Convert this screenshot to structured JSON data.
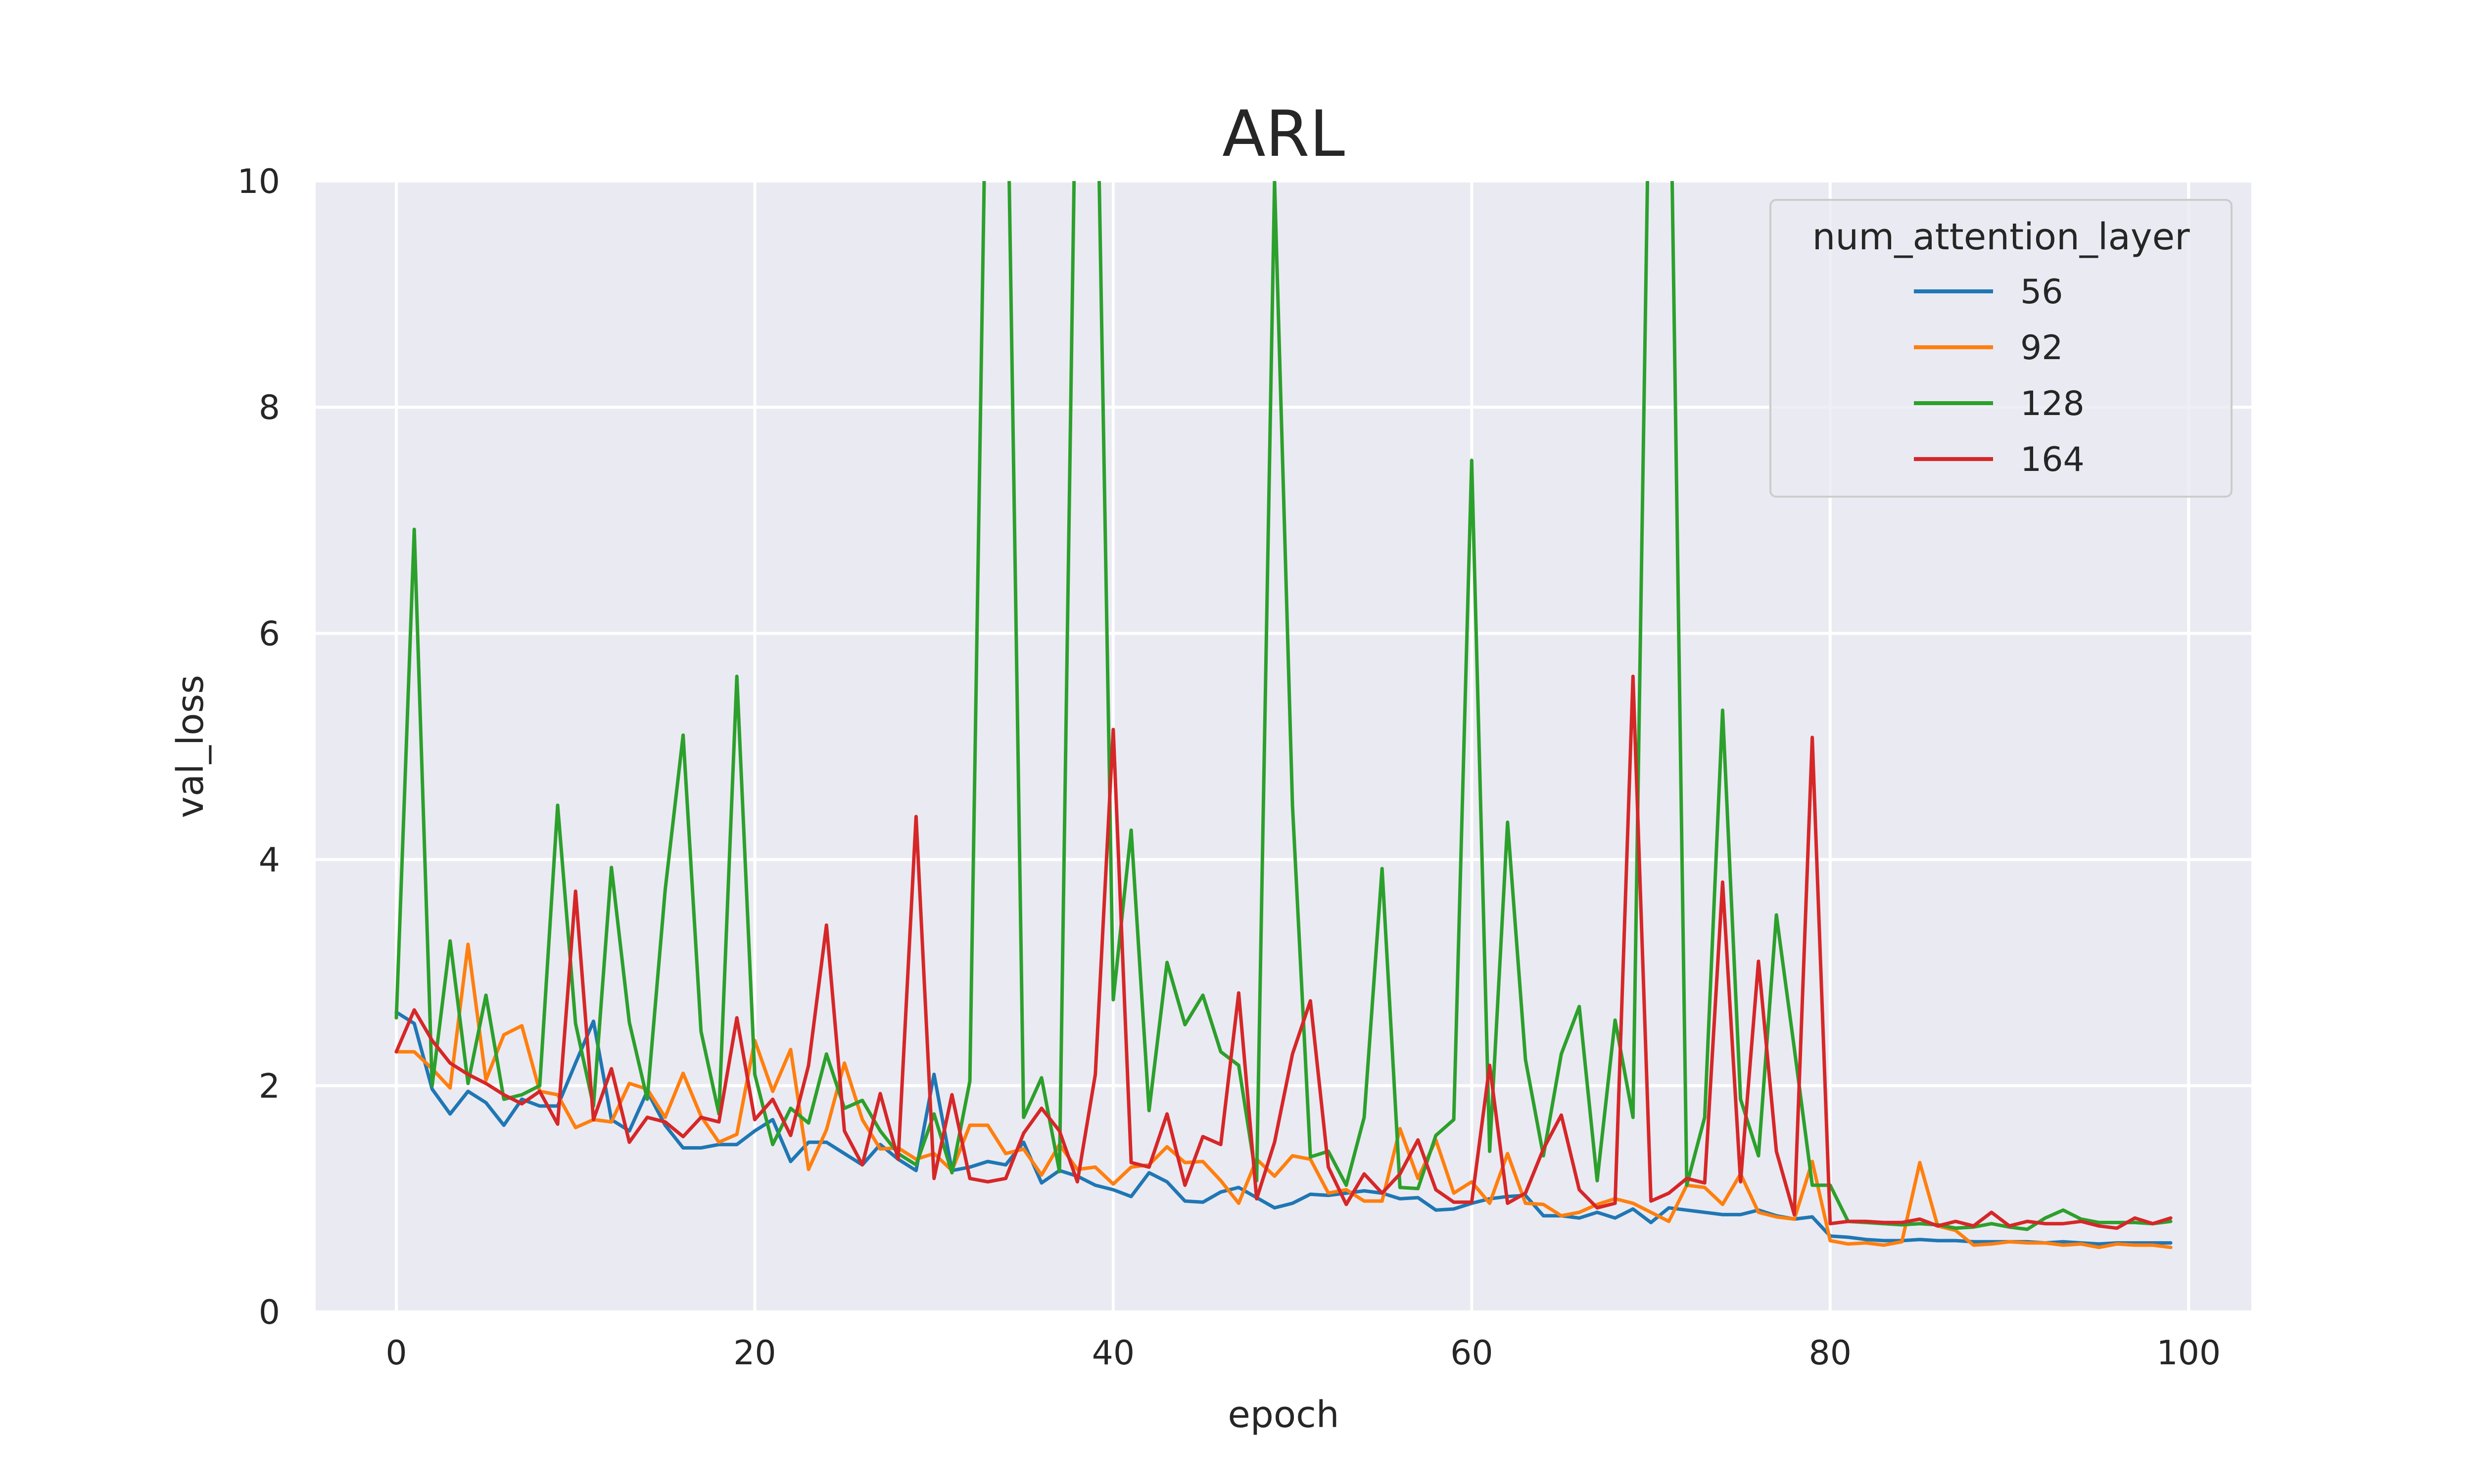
{
  "chart_data": {
    "type": "line",
    "title": "ARL",
    "xlabel": "epoch",
    "ylabel": "val_loss",
    "xlim": [
      -4.5,
      103.5
    ],
    "ylim": [
      0,
      10
    ],
    "xticks": [
      0,
      20,
      40,
      60,
      80,
      100
    ],
    "yticks": [
      0,
      2,
      4,
      6,
      8,
      10
    ],
    "grid": true,
    "legend": {
      "title": "num_attention_layer",
      "placement": "top-right"
    },
    "colors": {
      "56": "#1f77b4",
      "92": "#ff7f0e",
      "128": "#2ca02c",
      "164": "#d62728",
      "background": "#eaeaf2"
    },
    "series": [
      {
        "name": "56",
        "color": "#1f77b4",
        "values": [
          2.65,
          2.55,
          1.97,
          1.75,
          1.95,
          1.85,
          1.65,
          1.88,
          1.82,
          1.82,
          2.2,
          2.57,
          1.7,
          1.6,
          1.95,
          1.65,
          1.45,
          1.45,
          1.48,
          1.48,
          1.6,
          1.7,
          1.33,
          1.5,
          1.5,
          1.4,
          1.3,
          1.48,
          1.35,
          1.25,
          2.1,
          1.25,
          1.28,
          1.33,
          1.3,
          1.5,
          1.14,
          1.25,
          1.2,
          1.12,
          1.08,
          1.02,
          1.23,
          1.15,
          0.98,
          0.97,
          1.06,
          1.1,
          1.01,
          0.92,
          0.96,
          1.04,
          1.03,
          1.05,
          1.07,
          1.05,
          1.0,
          1.01,
          0.9,
          0.91,
          0.96,
          1.0,
          1.02,
          1.03,
          0.85,
          0.85,
          0.83,
          0.88,
          0.83,
          0.91,
          0.79,
          0.92,
          0.9,
          0.88,
          0.86,
          0.86,
          0.9,
          0.85,
          0.82,
          0.84,
          0.67,
          0.66,
          0.64,
          0.63,
          0.63,
          0.64,
          0.63,
          0.63,
          0.62,
          0.62,
          0.62,
          0.62,
          0.61,
          0.62,
          0.61,
          0.6,
          0.61,
          0.61,
          0.61,
          0.61
        ]
      },
      {
        "name": "92",
        "color": "#ff7f0e",
        "values": [
          2.3,
          2.3,
          2.15,
          1.98,
          3.25,
          2.05,
          2.45,
          2.53,
          1.95,
          1.92,
          1.63,
          1.7,
          1.68,
          2.02,
          1.97,
          1.72,
          2.11,
          1.73,
          1.5,
          1.57,
          2.4,
          1.95,
          2.32,
          1.26,
          1.61,
          2.2,
          1.7,
          1.44,
          1.45,
          1.35,
          1.4,
          1.25,
          1.65,
          1.65,
          1.4,
          1.44,
          1.21,
          1.48,
          1.26,
          1.28,
          1.13,
          1.28,
          1.3,
          1.46,
          1.32,
          1.33,
          1.16,
          0.96,
          1.35,
          1.2,
          1.38,
          1.35,
          1.05,
          1.08,
          0.98,
          0.98,
          1.62,
          1.18,
          1.52,
          1.05,
          1.15,
          0.96,
          1.4,
          0.96,
          0.95,
          0.85,
          0.88,
          0.95,
          1.0,
          0.96,
          0.88,
          0.8,
          1.12,
          1.1,
          0.95,
          1.22,
          0.88,
          0.84,
          0.82,
          1.33,
          0.63,
          0.6,
          0.61,
          0.59,
          0.62,
          1.32,
          0.76,
          0.72,
          0.59,
          0.6,
          0.62,
          0.61,
          0.61,
          0.59,
          0.6,
          0.57,
          0.6,
          0.59,
          0.59,
          0.57
        ]
      },
      {
        "name": "128",
        "color": "#2ca02c",
        "values": [
          2.6,
          6.92,
          2.0,
          3.28,
          2.02,
          2.8,
          1.88,
          1.92,
          2.0,
          4.48,
          2.55,
          1.82,
          3.93,
          2.56,
          1.88,
          3.73,
          5.1,
          2.48,
          1.75,
          5.62,
          2.1,
          1.48,
          1.8,
          1.67,
          2.28,
          1.8,
          1.87,
          1.6,
          1.4,
          1.3,
          1.75,
          1.23,
          2.04,
          12.0,
          12.0,
          1.72,
          2.07,
          1.24,
          12.0,
          12.0,
          2.76,
          4.26,
          1.78,
          3.09,
          2.54,
          2.8,
          2.3,
          2.18,
          1.16,
          10.0,
          4.48,
          1.37,
          1.42,
          1.12,
          1.72,
          3.92,
          1.1,
          1.09,
          1.56,
          1.7,
          7.53,
          1.42,
          4.33,
          2.23,
          1.38,
          2.28,
          2.7,
          1.16,
          2.58,
          1.72,
          12.0,
          12.0,
          1.12,
          1.72,
          5.32,
          1.88,
          1.38,
          3.51,
          2.33,
          1.12,
          1.12,
          0.8,
          0.79,
          0.78,
          0.77,
          0.78,
          0.77,
          0.74,
          0.75,
          0.78,
          0.75,
          0.73,
          0.83,
          0.9,
          0.82,
          0.79,
          0.79,
          0.79,
          0.78,
          0.8
        ]
      },
      {
        "name": "164",
        "color": "#d62728",
        "values": [
          2.3,
          2.67,
          2.4,
          2.2,
          2.1,
          2.02,
          1.92,
          1.84,
          1.95,
          1.66,
          3.72,
          1.7,
          2.15,
          1.5,
          1.72,
          1.68,
          1.55,
          1.72,
          1.68,
          2.6,
          1.7,
          1.88,
          1.56,
          2.18,
          3.42,
          1.6,
          1.3,
          1.93,
          1.35,
          4.38,
          1.18,
          1.92,
          1.18,
          1.15,
          1.18,
          1.58,
          1.8,
          1.6,
          1.15,
          2.1,
          5.15,
          1.32,
          1.28,
          1.75,
          1.12,
          1.55,
          1.48,
          2.82,
          1.0,
          1.5,
          2.28,
          2.75,
          1.28,
          0.95,
          1.22,
          1.05,
          1.22,
          1.52,
          1.08,
          0.97,
          0.97,
          2.18,
          0.96,
          1.05,
          1.44,
          1.74,
          1.08,
          0.92,
          0.96,
          5.62,
          0.98,
          1.05,
          1.18,
          1.14,
          3.8,
          1.15,
          3.1,
          1.42,
          0.86,
          5.08,
          0.78,
          0.8,
          0.8,
          0.79,
          0.79,
          0.82,
          0.76,
          0.8,
          0.76,
          0.88,
          0.76,
          0.8,
          0.78,
          0.78,
          0.8,
          0.76,
          0.74,
          0.83,
          0.78,
          0.83
        ]
      }
    ]
  }
}
